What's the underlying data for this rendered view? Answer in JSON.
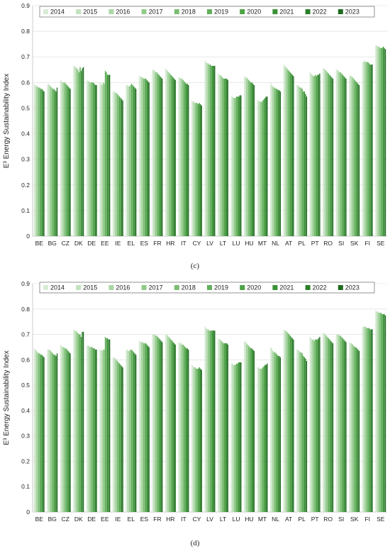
{
  "chart_data": [
    {
      "type": "bar",
      "panel_label": "(c)",
      "ylabel": "E³ Energy Sustainability Index",
      "ylim": [
        0,
        0.9
      ],
      "yticks": [
        "0",
        "0.1",
        "0.2",
        "0.3",
        "0.4",
        "0.5",
        "0.6",
        "0.7",
        "0.8",
        "0.9"
      ],
      "legend_position": "top",
      "categories": [
        "BE",
        "BG",
        "CZ",
        "DK",
        "DE",
        "EE",
        "IE",
        "EL",
        "ES",
        "FR",
        "HR",
        "IT",
        "CY",
        "LV",
        "LT",
        "LU",
        "HU",
        "MT",
        "NL",
        "AT",
        "PL",
        "PT",
        "RO",
        "SI",
        "SK",
        "FI",
        "SE"
      ],
      "series": [
        {
          "name": "2014",
          "color": "#d8ecd5",
          "values": [
            0.595,
            0.59,
            0.61,
            0.665,
            0.61,
            0.6,
            0.565,
            0.59,
            0.625,
            0.65,
            0.655,
            0.62,
            0.53,
            0.685,
            0.635,
            0.545,
            0.625,
            0.53,
            0.6,
            0.67,
            0.59,
            0.64,
            0.655,
            0.65,
            0.63,
            0.68,
            0.745
          ]
        },
        {
          "name": "2015",
          "color": "#c3e2bf",
          "values": [
            0.59,
            0.595,
            0.605,
            0.665,
            0.605,
            0.595,
            0.565,
            0.59,
            0.625,
            0.65,
            0.65,
            0.62,
            0.525,
            0.68,
            0.63,
            0.545,
            0.62,
            0.53,
            0.59,
            0.665,
            0.59,
            0.635,
            0.655,
            0.65,
            0.625,
            0.68,
            0.745
          ]
        },
        {
          "name": "2016",
          "color": "#abd6a5",
          "values": [
            0.585,
            0.59,
            0.6,
            0.66,
            0.605,
            0.59,
            0.56,
            0.585,
            0.62,
            0.645,
            0.645,
            0.615,
            0.525,
            0.675,
            0.63,
            0.54,
            0.62,
            0.525,
            0.585,
            0.66,
            0.585,
            0.63,
            0.65,
            0.645,
            0.625,
            0.685,
            0.74
          ]
        },
        {
          "name": "2017",
          "color": "#93ca8b",
          "values": [
            0.585,
            0.585,
            0.6,
            0.655,
            0.6,
            0.6,
            0.56,
            0.585,
            0.62,
            0.64,
            0.64,
            0.615,
            0.52,
            0.675,
            0.625,
            0.54,
            0.615,
            0.525,
            0.58,
            0.655,
            0.58,
            0.625,
            0.645,
            0.64,
            0.62,
            0.68,
            0.74
          ]
        },
        {
          "name": "2018",
          "color": "#7bbd73",
          "values": [
            0.58,
            0.58,
            0.6,
            0.65,
            0.6,
            0.595,
            0.555,
            0.59,
            0.615,
            0.64,
            0.635,
            0.61,
            0.52,
            0.67,
            0.62,
            0.54,
            0.61,
            0.525,
            0.58,
            0.65,
            0.58,
            0.625,
            0.64,
            0.64,
            0.615,
            0.68,
            0.735
          ]
        },
        {
          "name": "2019",
          "color": "#62b05b",
          "values": [
            0.58,
            0.575,
            0.595,
            0.64,
            0.6,
            0.645,
            0.55,
            0.595,
            0.615,
            0.635,
            0.63,
            0.605,
            0.52,
            0.67,
            0.615,
            0.545,
            0.605,
            0.53,
            0.575,
            0.645,
            0.575,
            0.63,
            0.635,
            0.635,
            0.61,
            0.68,
            0.735
          ]
        },
        {
          "name": "2020",
          "color": "#4ca345",
          "values": [
            0.575,
            0.575,
            0.59,
            0.66,
            0.6,
            0.64,
            0.545,
            0.59,
            0.615,
            0.63,
            0.625,
            0.6,
            0.515,
            0.665,
            0.615,
            0.545,
            0.6,
            0.535,
            0.575,
            0.64,
            0.565,
            0.625,
            0.63,
            0.63,
            0.605,
            0.675,
            0.735
          ]
        },
        {
          "name": "2021",
          "color": "#3a9236",
          "values": [
            0.575,
            0.57,
            0.585,
            0.645,
            0.595,
            0.63,
            0.54,
            0.585,
            0.61,
            0.625,
            0.62,
            0.595,
            0.52,
            0.665,
            0.615,
            0.545,
            0.6,
            0.54,
            0.57,
            0.635,
            0.565,
            0.63,
            0.625,
            0.625,
            0.6,
            0.67,
            0.74
          ]
        },
        {
          "name": "2022",
          "color": "#2b7f29",
          "values": [
            0.57,
            0.565,
            0.58,
            0.655,
            0.59,
            0.63,
            0.535,
            0.58,
            0.605,
            0.62,
            0.615,
            0.595,
            0.515,
            0.665,
            0.615,
            0.55,
            0.595,
            0.545,
            0.57,
            0.63,
            0.555,
            0.63,
            0.62,
            0.62,
            0.595,
            0.67,
            0.735
          ]
        },
        {
          "name": "2023",
          "color": "#1e6b1e",
          "values": [
            0.565,
            0.58,
            0.575,
            0.66,
            0.59,
            0.63,
            0.53,
            0.575,
            0.6,
            0.615,
            0.61,
            0.59,
            0.51,
            0.665,
            0.61,
            0.55,
            0.59,
            0.545,
            0.565,
            0.625,
            0.545,
            0.635,
            0.615,
            0.615,
            0.59,
            0.67,
            0.73
          ]
        }
      ]
    },
    {
      "type": "bar",
      "panel_label": "(d)",
      "ylabel": "E³ Energy Sustainability Index",
      "ylim": [
        0,
        0.9
      ],
      "yticks": [
        "0",
        "0.1",
        "0.2",
        "0.3",
        "0.4",
        "0.5",
        "0.6",
        "0.7",
        "0.8",
        "0.9"
      ],
      "legend_position": "top",
      "categories": [
        "BE",
        "BG",
        "CZ",
        "DK",
        "DE",
        "EE",
        "IE",
        "EL",
        "ES",
        "FR",
        "HR",
        "IT",
        "CY",
        "LV",
        "LT",
        "LU",
        "HU",
        "MT",
        "NL",
        "AT",
        "PL",
        "PT",
        "RO",
        "SI",
        "SK",
        "FI",
        "SE"
      ],
      "series": [
        {
          "name": "2014",
          "color": "#d8ecd5",
          "values": [
            0.645,
            0.64,
            0.66,
            0.72,
            0.655,
            0.64,
            0.61,
            0.64,
            0.675,
            0.7,
            0.7,
            0.67,
            0.58,
            0.73,
            0.685,
            0.585,
            0.675,
            0.57,
            0.65,
            0.72,
            0.64,
            0.69,
            0.705,
            0.7,
            0.67,
            0.73,
            0.795
          ]
        },
        {
          "name": "2015",
          "color": "#c3e2bf",
          "values": [
            0.64,
            0.64,
            0.655,
            0.715,
            0.655,
            0.64,
            0.61,
            0.64,
            0.67,
            0.7,
            0.7,
            0.665,
            0.575,
            0.725,
            0.68,
            0.585,
            0.67,
            0.57,
            0.645,
            0.715,
            0.64,
            0.685,
            0.705,
            0.7,
            0.665,
            0.73,
            0.79
          ]
        },
        {
          "name": "2016",
          "color": "#abd6a5",
          "values": [
            0.635,
            0.64,
            0.65,
            0.715,
            0.655,
            0.635,
            0.605,
            0.635,
            0.67,
            0.7,
            0.695,
            0.665,
            0.57,
            0.72,
            0.68,
            0.58,
            0.665,
            0.565,
            0.635,
            0.715,
            0.635,
            0.68,
            0.7,
            0.7,
            0.665,
            0.73,
            0.79
          ]
        },
        {
          "name": "2017",
          "color": "#93ca8b",
          "values": [
            0.63,
            0.635,
            0.65,
            0.71,
            0.65,
            0.64,
            0.6,
            0.635,
            0.67,
            0.695,
            0.69,
            0.66,
            0.57,
            0.72,
            0.675,
            0.58,
            0.66,
            0.565,
            0.63,
            0.71,
            0.63,
            0.68,
            0.695,
            0.695,
            0.66,
            0.73,
            0.785
          ]
        },
        {
          "name": "2018",
          "color": "#7bbd73",
          "values": [
            0.625,
            0.63,
            0.645,
            0.705,
            0.65,
            0.64,
            0.595,
            0.64,
            0.665,
            0.695,
            0.685,
            0.66,
            0.565,
            0.715,
            0.67,
            0.58,
            0.655,
            0.565,
            0.63,
            0.705,
            0.63,
            0.675,
            0.69,
            0.695,
            0.655,
            0.725,
            0.785
          ]
        },
        {
          "name": "2019",
          "color": "#62b05b",
          "values": [
            0.625,
            0.625,
            0.645,
            0.7,
            0.65,
            0.69,
            0.59,
            0.64,
            0.665,
            0.69,
            0.68,
            0.655,
            0.565,
            0.715,
            0.665,
            0.585,
            0.65,
            0.57,
            0.625,
            0.7,
            0.625,
            0.68,
            0.685,
            0.69,
            0.65,
            0.725,
            0.785
          ]
        },
        {
          "name": "2020",
          "color": "#4ca345",
          "values": [
            0.62,
            0.62,
            0.64,
            0.7,
            0.645,
            0.685,
            0.585,
            0.635,
            0.665,
            0.685,
            0.675,
            0.65,
            0.565,
            0.715,
            0.665,
            0.585,
            0.645,
            0.575,
            0.62,
            0.695,
            0.615,
            0.68,
            0.68,
            0.685,
            0.65,
            0.725,
            0.78
          ]
        },
        {
          "name": "2021",
          "color": "#3a9236",
          "values": [
            0.62,
            0.62,
            0.635,
            0.69,
            0.645,
            0.685,
            0.58,
            0.63,
            0.66,
            0.68,
            0.67,
            0.645,
            0.57,
            0.715,
            0.665,
            0.59,
            0.645,
            0.58,
            0.615,
            0.69,
            0.61,
            0.68,
            0.675,
            0.68,
            0.645,
            0.72,
            0.78
          ]
        },
        {
          "name": "2022",
          "color": "#2b7f29",
          "values": [
            0.615,
            0.615,
            0.63,
            0.71,
            0.64,
            0.68,
            0.575,
            0.625,
            0.655,
            0.675,
            0.665,
            0.645,
            0.565,
            0.715,
            0.665,
            0.59,
            0.64,
            0.58,
            0.615,
            0.685,
            0.605,
            0.685,
            0.67,
            0.675,
            0.64,
            0.72,
            0.78
          ]
        },
        {
          "name": "2023",
          "color": "#1e6b1e",
          "values": [
            0.61,
            0.625,
            0.625,
            0.71,
            0.64,
            0.68,
            0.57,
            0.62,
            0.65,
            0.67,
            0.66,
            0.64,
            0.56,
            0.715,
            0.66,
            0.59,
            0.635,
            0.585,
            0.61,
            0.68,
            0.595,
            0.69,
            0.665,
            0.67,
            0.635,
            0.72,
            0.775
          ]
        }
      ]
    }
  ]
}
